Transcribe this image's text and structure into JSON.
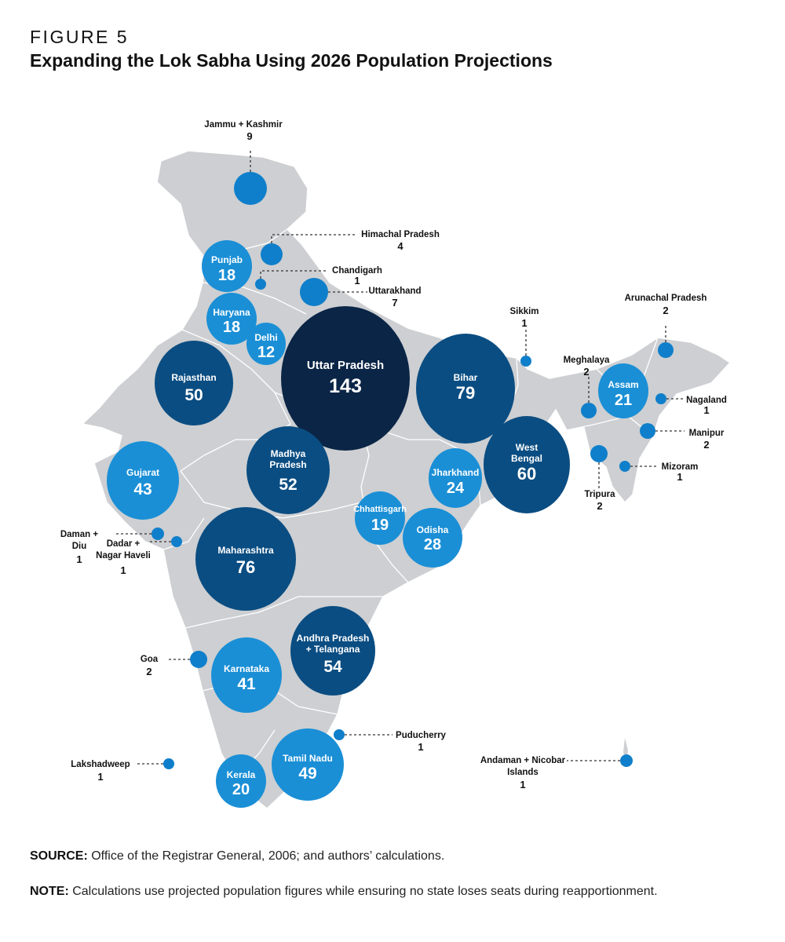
{
  "figure": {
    "label": "FIGURE 5",
    "title": "Expanding the Lok Sabha Using 2026 Population Projections"
  },
  "colors": {
    "map_land": "#cdcfd2",
    "map_border": "#ffffff",
    "bubble_light": "#1a8fd6",
    "bubble_medium": "#0a4d82",
    "bubble_dark": "#0b2546",
    "small_dot": "#0f7fcb",
    "leader_line": "#333333"
  },
  "states": [
    {
      "name": "Uttar Pradesh",
      "seats": 143,
      "tier": "dark"
    },
    {
      "name": "Bihar",
      "seats": 79,
      "tier": "medium"
    },
    {
      "name": "Maharashtra",
      "seats": 76,
      "tier": "medium"
    },
    {
      "name": "West Bengal",
      "seats": 60,
      "tier": "medium"
    },
    {
      "name": "Andhra Pradesh + Telangana",
      "seats": 54,
      "tier": "medium"
    },
    {
      "name": "Madhya Pradesh",
      "seats": 52,
      "tier": "medium"
    },
    {
      "name": "Rajasthan",
      "seats": 50,
      "tier": "medium"
    },
    {
      "name": "Tamil Nadu",
      "seats": 49,
      "tier": "light"
    },
    {
      "name": "Gujarat",
      "seats": 43,
      "tier": "light"
    },
    {
      "name": "Karnataka",
      "seats": 41,
      "tier": "light"
    },
    {
      "name": "Odisha",
      "seats": 28,
      "tier": "light"
    },
    {
      "name": "Jharkhand",
      "seats": 24,
      "tier": "light"
    },
    {
      "name": "Assam",
      "seats": 21,
      "tier": "light"
    },
    {
      "name": "Kerala",
      "seats": 20,
      "tier": "light"
    },
    {
      "name": "Chhattisgarh",
      "seats": 19,
      "tier": "light"
    },
    {
      "name": "Punjab",
      "seats": 18,
      "tier": "light"
    },
    {
      "name": "Haryana",
      "seats": 18,
      "tier": "light"
    },
    {
      "name": "Delhi",
      "seats": 12,
      "tier": "light"
    },
    {
      "name": "Jammu + Kashmir",
      "seats": 9,
      "tier": "callout"
    },
    {
      "name": "Uttarakhand",
      "seats": 7,
      "tier": "callout"
    },
    {
      "name": "Himachal Pradesh",
      "seats": 4,
      "tier": "callout"
    },
    {
      "name": "Arunachal Pradesh",
      "seats": 2,
      "tier": "callout"
    },
    {
      "name": "Meghalaya",
      "seats": 2,
      "tier": "callout"
    },
    {
      "name": "Manipur",
      "seats": 2,
      "tier": "callout"
    },
    {
      "name": "Tripura",
      "seats": 2,
      "tier": "callout"
    },
    {
      "name": "Goa",
      "seats": 2,
      "tier": "callout"
    },
    {
      "name": "Chandigarh",
      "seats": 1,
      "tier": "callout"
    },
    {
      "name": "Sikkim",
      "seats": 1,
      "tier": "callout"
    },
    {
      "name": "Nagaland",
      "seats": 1,
      "tier": "callout"
    },
    {
      "name": "Mizoram",
      "seats": 1,
      "tier": "callout"
    },
    {
      "name": "Daman + Diu",
      "seats": 1,
      "tier": "callout"
    },
    {
      "name": "Dadar + Nagar Haveli",
      "seats": 1,
      "tier": "callout"
    },
    {
      "name": "Puducherry",
      "seats": 1,
      "tier": "callout"
    },
    {
      "name": "Lakshadweep",
      "seats": 1,
      "tier": "callout"
    },
    {
      "name": "Andaman + Nicobar Islands",
      "seats": 1,
      "tier": "callout"
    }
  ],
  "source": {
    "label": "SOURCE:",
    "text": " Office of the Registrar General, 2006; and authors’ calculations."
  },
  "note": {
    "label": "NOTE:",
    "text": " Calculations use projected population figures while ensuring no state loses seats during reapportionment."
  }
}
